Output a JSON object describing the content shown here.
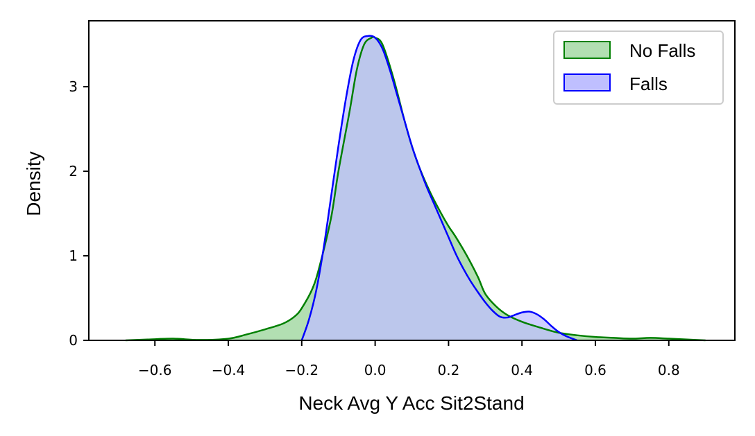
{
  "chart_data": {
    "type": "area",
    "title": "",
    "xlabel": "Neck Avg Y Acc Sit2Stand",
    "ylabel": "Density",
    "xlim": [
      -0.78,
      0.98
    ],
    "ylim": [
      0,
      3.78
    ],
    "x_ticks": [
      -0.6,
      -0.4,
      -0.2,
      0.0,
      0.2,
      0.4,
      0.6,
      0.8
    ],
    "x_tick_labels": [
      "−0.6",
      "−0.4",
      "−0.2",
      "0.0",
      "0.2",
      "0.4",
      "0.6",
      "0.8"
    ],
    "y_ticks": [
      0,
      1,
      2,
      3
    ],
    "y_tick_labels": [
      "0",
      "1",
      "2",
      "3"
    ],
    "grid": false,
    "legend_position": "top-right",
    "series": [
      {
        "name": "No Falls",
        "color": "#008000",
        "fill": "#b2dfb2",
        "x": [
          -0.68,
          -0.62,
          -0.55,
          -0.48,
          -0.4,
          -0.35,
          -0.3,
          -0.25,
          -0.22,
          -0.2,
          -0.17,
          -0.15,
          -0.12,
          -0.1,
          -0.07,
          -0.05,
          -0.03,
          -0.01,
          0.0,
          0.02,
          0.05,
          0.08,
          0.1,
          0.12,
          0.15,
          0.18,
          0.2,
          0.22,
          0.25,
          0.28,
          0.3,
          0.33,
          0.36,
          0.4,
          0.45,
          0.5,
          0.55,
          0.6,
          0.65,
          0.7,
          0.75,
          0.8,
          0.85,
          0.9
        ],
        "y": [
          0.0,
          0.01,
          0.02,
          0.005,
          0.02,
          0.07,
          0.13,
          0.2,
          0.28,
          0.38,
          0.62,
          0.9,
          1.45,
          2.0,
          2.7,
          3.2,
          3.5,
          3.58,
          3.58,
          3.5,
          3.1,
          2.6,
          2.3,
          2.05,
          1.75,
          1.5,
          1.35,
          1.22,
          1.0,
          0.75,
          0.55,
          0.4,
          0.3,
          0.22,
          0.15,
          0.09,
          0.06,
          0.04,
          0.03,
          0.02,
          0.03,
          0.02,
          0.01,
          0.0
        ]
      },
      {
        "name": "Falls",
        "color": "#0000ff",
        "fill": "#bfbfff",
        "x": [
          -0.2,
          -0.18,
          -0.16,
          -0.14,
          -0.12,
          -0.1,
          -0.08,
          -0.06,
          -0.04,
          -0.02,
          0.0,
          0.02,
          0.04,
          0.06,
          0.08,
          0.1,
          0.12,
          0.14,
          0.16,
          0.18,
          0.2,
          0.22,
          0.24,
          0.26,
          0.28,
          0.3,
          0.32,
          0.34,
          0.36,
          0.38,
          0.4,
          0.42,
          0.44,
          0.46,
          0.48,
          0.5,
          0.52,
          0.55
        ],
        "y": [
          0.0,
          0.25,
          0.6,
          1.1,
          1.7,
          2.3,
          2.85,
          3.3,
          3.55,
          3.6,
          3.58,
          3.45,
          3.2,
          2.9,
          2.6,
          2.3,
          2.05,
          1.82,
          1.62,
          1.42,
          1.22,
          1.02,
          0.85,
          0.7,
          0.57,
          0.45,
          0.35,
          0.28,
          0.27,
          0.3,
          0.33,
          0.34,
          0.31,
          0.25,
          0.17,
          0.1,
          0.05,
          0.0
        ]
      }
    ]
  }
}
